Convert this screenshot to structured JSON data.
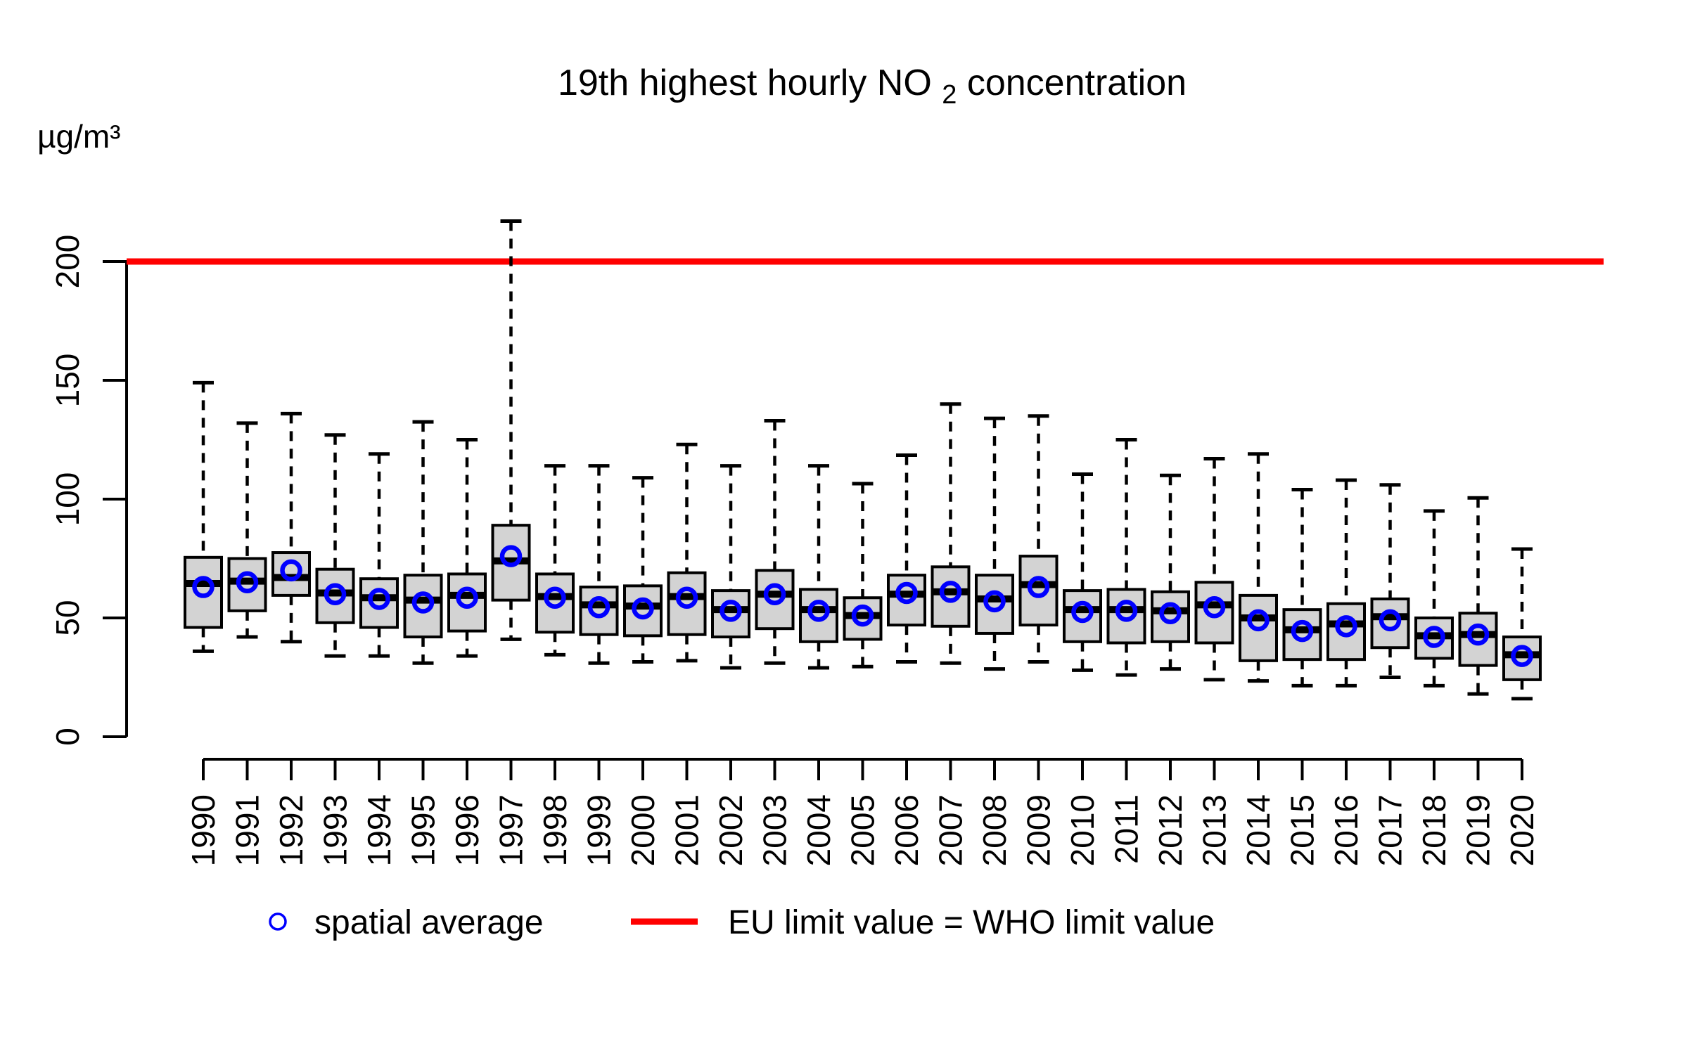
{
  "chart": {
    "title_parts": {
      "prefix": "19th highest hourly NO",
      "sub": "2",
      "suffix": " concentration"
    },
    "unit_label": "µg/m³",
    "legend": {
      "spatial_average": {
        "label": "spatial average",
        "marker": "blue-open-circle",
        "color": "#0000ff"
      },
      "limit_line": {
        "label": "EU limit value = WHO limit value",
        "marker": "red-line",
        "color": "#ff0000"
      }
    }
  },
  "chart_data": {
    "type": "boxplot",
    "title": "19th highest hourly NO2 concentration",
    "ylabel": "µg/m³",
    "xlabel": "",
    "ylim": [
      0,
      220
    ],
    "y_ticks": [
      0,
      50,
      100,
      150,
      200
    ],
    "grid": false,
    "legend_position": "bottom",
    "reference_line": {
      "value": 200,
      "color": "#ff0000",
      "label": "EU limit value = WHO limit value"
    },
    "box_fill": "#d3d3d3",
    "box_stroke": "#000000",
    "mean_marker_color": "#0000ff",
    "categories": [
      1990,
      1991,
      1992,
      1993,
      1994,
      1995,
      1996,
      1997,
      1998,
      1999,
      2000,
      2001,
      2002,
      2003,
      2004,
      2005,
      2006,
      2007,
      2008,
      2009,
      2010,
      2011,
      2012,
      2013,
      2014,
      2015,
      2016,
      2017,
      2018,
      2019,
      2020
    ],
    "series": [
      {
        "name": "whisker_low",
        "values": [
          36,
          42,
          40,
          34,
          34,
          31,
          34,
          41,
          34.5,
          31,
          31.5,
          32,
          29,
          31,
          29,
          29.5,
          31.5,
          31,
          28.5,
          31.5,
          28,
          26,
          28.5,
          24,
          23.5,
          21.5,
          21.5,
          25,
          21.5,
          18,
          16
        ]
      },
      {
        "name": "q1",
        "values": [
          46,
          53,
          59.5,
          48,
          46,
          42,
          44.5,
          57.5,
          44,
          43,
          42.5,
          43,
          42,
          45.5,
          40,
          41,
          47,
          46.5,
          43.5,
          47,
          40,
          39.5,
          40,
          39.5,
          32,
          32.5,
          32.5,
          37.5,
          33,
          30,
          24
        ]
      },
      {
        "name": "median",
        "values": [
          64.5,
          65.5,
          67,
          60.5,
          58.5,
          57.5,
          59.5,
          74,
          59,
          55.5,
          55,
          59,
          53.5,
          60,
          53.5,
          51,
          60,
          61,
          58,
          64,
          53.5,
          53.5,
          53,
          55.5,
          50,
          45,
          47.5,
          50.5,
          42.5,
          43,
          34.5
        ]
      },
      {
        "name": "q3",
        "values": [
          75.5,
          75,
          77.5,
          70.5,
          66.5,
          68,
          68.5,
          89,
          68.5,
          63,
          63.5,
          69,
          61.5,
          70,
          62,
          58.5,
          68,
          71.5,
          68,
          76,
          61.5,
          62,
          61,
          65,
          59.5,
          53.5,
          56,
          58,
          50,
          52,
          42
        ]
      },
      {
        "name": "whisker_high",
        "values": [
          149,
          132,
          136,
          127,
          119,
          132.5,
          125,
          217,
          114,
          114,
          109,
          123,
          114,
          133,
          114,
          106.5,
          118.5,
          140,
          134,
          135,
          110.5,
          125,
          110,
          117,
          119,
          104,
          108,
          106,
          95,
          100.5,
          79
        ]
      },
      {
        "name": "spatial_average_mean",
        "values": [
          63,
          65,
          70,
          60,
          58,
          56.5,
          58.5,
          76,
          58.5,
          54.5,
          54,
          58.5,
          53,
          60,
          53,
          51,
          60.5,
          61,
          57,
          63,
          52.5,
          53,
          52,
          54.5,
          49,
          44.5,
          46.5,
          49,
          42,
          43,
          34
        ]
      }
    ]
  }
}
